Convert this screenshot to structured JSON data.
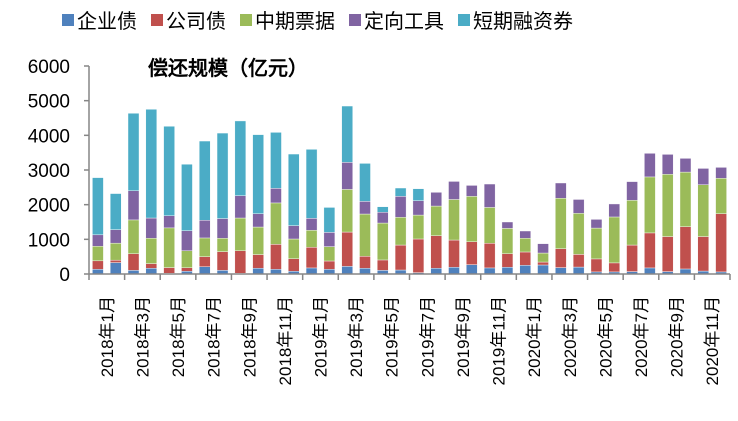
{
  "chart_data": {
    "type": "bar",
    "stacked": true,
    "title": "偿还规模（亿元）",
    "xlabel": "",
    "ylabel": "",
    "ylim": [
      0,
      6000
    ],
    "yticks": [
      "0",
      "1000",
      "2000",
      "3000",
      "4000",
      "5000",
      "6000"
    ],
    "ytick_values": [
      0,
      1000,
      2000,
      3000,
      4000,
      5000,
      6000
    ],
    "grid": false,
    "legend_position": "top",
    "categories": [
      "2018年1月",
      "2018年2月",
      "2018年3月",
      "2018年4月",
      "2018年5月",
      "2018年6月",
      "2018年7月",
      "2018年8月",
      "2018年9月",
      "2018年10月",
      "2018年11月",
      "2018年12月",
      "2019年1月",
      "2019年2月",
      "2019年3月",
      "2019年4月",
      "2019年5月",
      "2019年6月",
      "2019年7月",
      "2019年8月",
      "2019年9月",
      "2019年10月",
      "2019年11月",
      "2019年12月",
      "2020年1月",
      "2020年2月",
      "2020年3月",
      "2020年4月",
      "2020年5月",
      "2020年6月",
      "2020年7月",
      "2020年8月",
      "2020年9月",
      "2020年10月",
      "2020年11月",
      "2020年12月"
    ],
    "xtick_labels": [
      "2018年1月",
      "2018年3月",
      "2018年5月",
      "2018年7月",
      "2018年9月",
      "2018年11月",
      "2019年1月",
      "2019年3月",
      "2019年5月",
      "2019年7月",
      "2019年9月",
      "2019年11月",
      "2020年1月",
      "2020年3月",
      "2020年5月",
      "2020年7月",
      "2020年9月",
      "2020年11月"
    ],
    "series": [
      {
        "name": "企业债",
        "color": "#4f81bd",
        "values": [
          135,
          330,
          105,
          165,
          20,
          80,
          210,
          105,
          20,
          165,
          135,
          80,
          175,
          135,
          220,
          165,
          105,
          115,
          40,
          165,
          195,
          270,
          175,
          195,
          250,
          260,
          185,
          200,
          60,
          60,
          70,
          175,
          70,
          145,
          85,
          60
        ]
      },
      {
        "name": "公司债",
        "color": "#c0504d",
        "values": [
          245,
          70,
          480,
          135,
          165,
          100,
          290,
          540,
          650,
          395,
          720,
          360,
          595,
          240,
          990,
          345,
          300,
          720,
          970,
          940,
          785,
          660,
          710,
          390,
          385,
          85,
          545,
          365,
          375,
          260,
          765,
          1010,
          1010,
          1220,
          995,
          1680
        ]
      },
      {
        "name": "中期票据",
        "color": "#9bbb59",
        "values": [
          420,
          490,
          975,
          730,
          1145,
          490,
          540,
          385,
          945,
          795,
          1195,
          570,
          490,
          415,
          1230,
          1220,
          1065,
          800,
          690,
          855,
          1170,
          1310,
          1035,
          730,
          395,
          260,
          1455,
          1185,
          890,
          1325,
          1290,
          1615,
          1795,
          1575,
          1495,
          1020
        ]
      },
      {
        "name": "定向工具",
        "color": "#8064a2",
        "values": [
          330,
          390,
          840,
          585,
          350,
          580,
          510,
          570,
          645,
          385,
          420,
          385,
          345,
          410,
          780,
          365,
          310,
          605,
          415,
          395,
          520,
          315,
          675,
          185,
          210,
          270,
          440,
          400,
          250,
          375,
          540,
          680,
          575,
          395,
          470,
          315
        ]
      },
      {
        "name": "短期融资券",
        "color": "#4bacc6",
        "values": [
          1650,
          1040,
          2235,
          3135,
          2580,
          1915,
          2285,
          2465,
          2155,
          2280,
          1615,
          2065,
          1990,
          720,
          1625,
          1095,
          160,
          240,
          345,
          0,
          0,
          0,
          0,
          0,
          0,
          0,
          0,
          0,
          0,
          0,
          0,
          0,
          0,
          0,
          0,
          0
        ]
      }
    ]
  }
}
